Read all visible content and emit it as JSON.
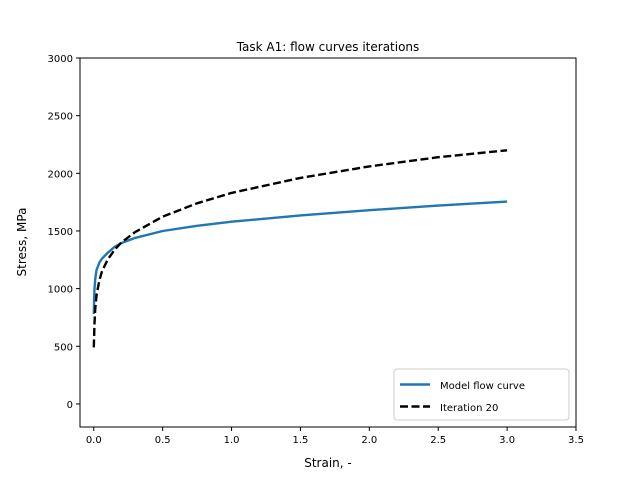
{
  "chart_data": {
    "type": "line",
    "title": "Task A1: flow curves iterations",
    "xlabel": "Strain, -",
    "ylabel": "Stress, MPa",
    "xlim": [
      -0.1,
      3.5
    ],
    "ylim": [
      -200,
      3000
    ],
    "xticks": [
      0.0,
      0.5,
      1.0,
      1.5,
      2.0,
      2.5,
      3.0,
      3.5
    ],
    "yticks": [
      0,
      500,
      1000,
      1500,
      2000,
      2500,
      3000
    ],
    "xtick_labels": [
      "0.0",
      "0.5",
      "1.0",
      "1.5",
      "2.0",
      "2.5",
      "3.0",
      "3.5"
    ],
    "ytick_labels": [
      "0",
      "500",
      "1000",
      "1500",
      "2000",
      "2500",
      "3000"
    ],
    "grid": false,
    "legend_position": "lower-right",
    "series": [
      {
        "name": "Model flow curve",
        "color": "#1f77b4",
        "linestyle": "solid",
        "x": [
          0.0,
          0.002,
          0.005,
          0.01,
          0.02,
          0.04,
          0.06,
          0.1,
          0.15,
          0.2,
          0.3,
          0.5,
          0.75,
          1.0,
          1.5,
          2.0,
          2.5,
          3.0
        ],
        "y": [
          780,
          900,
          1000,
          1080,
          1160,
          1225,
          1260,
          1310,
          1360,
          1395,
          1440,
          1500,
          1545,
          1580,
          1635,
          1680,
          1720,
          1755
        ]
      },
      {
        "name": "Iteration 20",
        "color": "#000000",
        "linestyle": "dashed",
        "x": [
          0.0,
          0.005,
          0.01,
          0.02,
          0.04,
          0.06,
          0.1,
          0.15,
          0.2,
          0.3,
          0.5,
          0.75,
          1.0,
          1.5,
          2.0,
          2.5,
          3.0
        ],
        "y": [
          490,
          700,
          820,
          940,
          1070,
          1150,
          1250,
          1335,
          1400,
          1490,
          1625,
          1740,
          1830,
          1960,
          2060,
          2140,
          2200
        ]
      }
    ]
  }
}
